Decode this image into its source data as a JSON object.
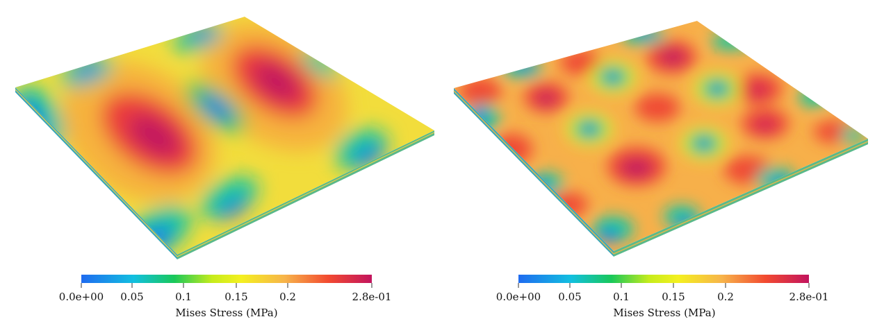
{
  "figure": {
    "panels": [
      {
        "id": "left",
        "mode_pattern": "three elongated stress lobes across a thin square plate",
        "colorbar": {
          "title": "Mises Stress (MPa)",
          "ticks": [
            "0.0e+00",
            "0.05",
            "0.1",
            "0.15",
            "0.2",
            "2.8e-01"
          ],
          "range": [
            0.0,
            0.28
          ]
        }
      },
      {
        "id": "right",
        "mode_pattern": "checkerboard of circular stress spots across a thin square plate",
        "colorbar": {
          "title": "Mises Stress (MPa)",
          "ticks": [
            "0.0e+00",
            "0.05",
            "0.1",
            "0.15",
            "0.2",
            "2.8e-01"
          ],
          "range": [
            0.0,
            0.28
          ]
        }
      }
    ],
    "colormap": [
      "#1f6bf0",
      "#12c8d4",
      "#19c85a",
      "#e6f01c",
      "#f7c64a",
      "#f3502f",
      "#c2145e"
    ]
  }
}
